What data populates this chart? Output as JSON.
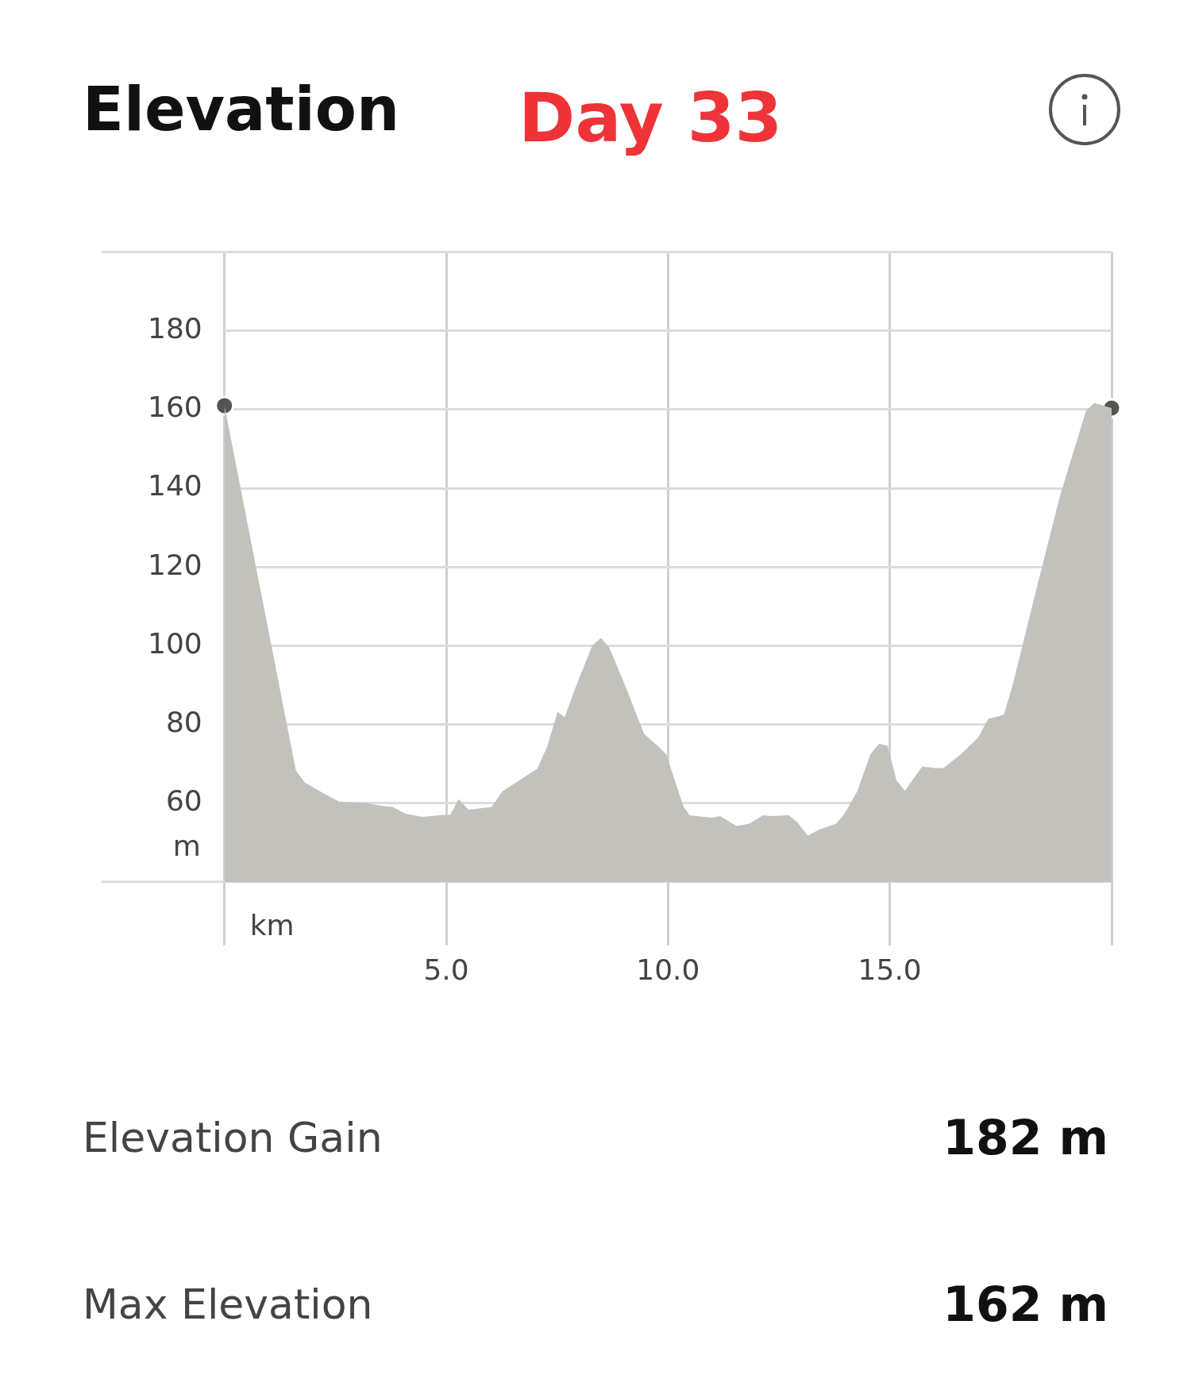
{
  "chart_data": {
    "type": "area",
    "title": "Elevation",
    "subtitle": "Day 33",
    "xlabel": "km",
    "ylabel": "m",
    "x": [
      0,
      0.06,
      0.78,
      1.61,
      1.81,
      2.23,
      2.58,
      3.2,
      3.5,
      3.79,
      4.08,
      4.47,
      4.95,
      5.09,
      5.28,
      5.5,
      6.02,
      6.27,
      6.7,
      7.05,
      7.28,
      7.51,
      7.67,
      7.9,
      8.29,
      8.49,
      8.68,
      9.03,
      9.46,
      9.81,
      9.96,
      10.35,
      10.49,
      10.97,
      11.17,
      11.55,
      11.84,
      12.14,
      12.29,
      12.72,
      12.91,
      13.15,
      13.4,
      13.79,
      13.98,
      14.27,
      14.56,
      14.76,
      14.95,
      15.15,
      15.34,
      15.73,
      16.02,
      16.21,
      16.6,
      16.99,
      17.22,
      17.57,
      17.77,
      18.25,
      18.83,
      19.42,
      19.61,
      20
    ],
    "series": [
      {
        "color": "#c2c1bb",
        "values": [
          161,
          157.5,
          116,
          68.3,
          65.2,
          62.5,
          60.4,
          60,
          59.4,
          59,
          57.3,
          56.5,
          57,
          57,
          61,
          58.3,
          59,
          63,
          66.2,
          68.7,
          74.5,
          83.2,
          81.8,
          89,
          100,
          102,
          99.4,
          90,
          77.6,
          74.1,
          72.4,
          59,
          56.9,
          56.3,
          56.7,
          54.2,
          54.8,
          56.9,
          56.7,
          56.9,
          55.2,
          51.7,
          53.2,
          54.8,
          57.3,
          63.1,
          72.4,
          75.1,
          74.5,
          65.8,
          63.1,
          69.3,
          68.9,
          68.9,
          72.4,
          76.6,
          81.4,
          82.4,
          90,
          111.9,
          137.8,
          159.6,
          161.7,
          160.4
        ]
      },
      {
        "type": "scatter",
        "marker": "circle",
        "color": "#555550",
        "x": [
          0,
          20
        ],
        "values": [
          161,
          160.4
        ]
      }
    ],
    "xlim": [
      0,
      20
    ],
    "xticks": [
      {
        "value": 0,
        "label": null
      },
      {
        "value": 5,
        "label": "5.0"
      },
      {
        "value": 10,
        "label": "10.0"
      },
      {
        "value": 15,
        "label": "15.0"
      },
      {
        "value": 20,
        "label": null
      }
    ],
    "ylim": [
      40,
      200
    ],
    "yticks": [
      60,
      80,
      100,
      120,
      140,
      160,
      180,
      {
        "value": 200,
        "label": null
      }
    ],
    "grid": true,
    "legend": false,
    "annotations": [
      "Elevation Gain",
      "182 m",
      "Max Elevation",
      "162 m"
    ]
  }
}
